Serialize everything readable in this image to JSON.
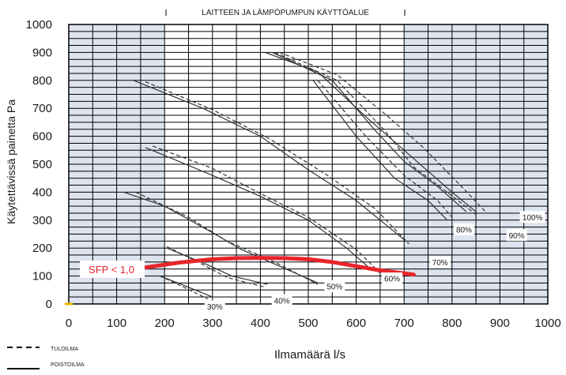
{
  "chart_data": {
    "type": "line",
    "title": "LAITTEEN JA LÄMPÖPUMPUN KÄYTTÖALUE",
    "xlabel": "Ilmamäärä l/s",
    "ylabel": "Käytettävissä painetta Pa",
    "xlim": [
      0,
      1000
    ],
    "ylim": [
      0,
      1000
    ],
    "x_ticks": [
      "0",
      "100",
      "200",
      "300",
      "400",
      "500",
      "600",
      "700",
      "800",
      "900",
      "1000"
    ],
    "y_ticks": [
      "0",
      "100",
      "200",
      "300",
      "400",
      "500",
      "600",
      "700",
      "800",
      "900",
      "1000"
    ],
    "grid": true,
    "shaded_x_ranges": [
      [
        0,
        200
      ],
      [
        700,
        1000
      ]
    ],
    "legend": {
      "position": "bottom-left",
      "items": [
        {
          "label": "TULOILMA",
          "style": "dashed"
        },
        {
          "label": "POISTOILMA",
          "style": "solid"
        }
      ]
    },
    "series": [
      {
        "label": "30%",
        "style": "solid",
        "x": [
          190,
          235,
          300
        ],
        "y": [
          100,
          70,
          25
        ]
      },
      {
        "label": "30%",
        "style": "dashed",
        "x": [
          190,
          240,
          290
        ],
        "y": [
          100,
          60,
          18
        ]
      },
      {
        "label": "40%",
        "style": "solid",
        "x": [
          205,
          290,
          340,
          415
        ],
        "y": [
          200,
          140,
          100,
          70
        ]
      },
      {
        "label": "40%",
        "style": "dashed",
        "x": [
          205,
          270,
          330,
          410
        ],
        "y": [
          205,
          150,
          95,
          60
        ]
      },
      {
        "label": "50%",
        "style": "solid",
        "x": [
          115,
          200,
          300,
          360,
          440,
          520
        ],
        "y": [
          400,
          350,
          255,
          195,
          135,
          75
        ]
      },
      {
        "label": "50%",
        "style": "dashed",
        "x": [
          140,
          250,
          330,
          430,
          520
        ],
        "y": [
          400,
          310,
          225,
          150,
          70
        ]
      },
      {
        "label": "60%",
        "style": "solid",
        "x": [
          160,
          300,
          400,
          500,
          580,
          630
        ],
        "y": [
          560,
          460,
          385,
          300,
          200,
          125
        ]
      },
      {
        "label": "60%",
        "style": "dashed",
        "x": [
          175,
          300,
          400,
          500,
          600,
          650
        ],
        "y": [
          565,
          485,
          395,
          310,
          195,
          110
        ]
      },
      {
        "label": "70%",
        "style": "solid",
        "x": [
          135,
          280,
          400,
          500,
          600,
          700
        ],
        "y": [
          800,
          700,
          600,
          480,
          370,
          230
        ]
      },
      {
        "label": "70%",
        "style": "dashed",
        "x": [
          160,
          300,
          420,
          540,
          640,
          710
        ],
        "y": [
          795,
          695,
          590,
          460,
          340,
          215
        ]
      },
      {
        "label": "80%",
        "style": "solid",
        "x": [
          510,
          600,
          680,
          750,
          790
        ],
        "y": [
          800,
          600,
          450,
          370,
          300
        ]
      },
      {
        "label": "80%",
        "style": "dashed",
        "x": [
          520,
          620,
          700,
          770,
          800
        ],
        "y": [
          800,
          600,
          460,
          370,
          310
        ]
      },
      {
        "label": "90%",
        "style": "solid",
        "x": [
          425,
          550,
          640,
          700,
          770,
          830
        ],
        "y": [
          900,
          800,
          620,
          510,
          420,
          330
        ]
      },
      {
        "label": "90%",
        "style": "dashed",
        "x": [
          430,
          560,
          660,
          720,
          790,
          850
        ],
        "y": [
          900,
          800,
          620,
          490,
          400,
          320
        ]
      },
      {
        "label": "100%",
        "style": "solid",
        "x": [
          410,
          520,
          620,
          720,
          800,
          850
        ],
        "y": [
          900,
          830,
          670,
          520,
          400,
          330
        ]
      },
      {
        "label": "100%",
        "style": "dashed",
        "x": [
          440,
          560,
          660,
          740,
          820,
          870
        ],
        "y": [
          900,
          820,
          680,
          560,
          420,
          330
        ]
      }
    ],
    "sfp_curve": {
      "label": "SFP < 1,0",
      "color": "#e8242b",
      "x": [
        150,
        230,
        300,
        350,
        400,
        450,
        500,
        550,
        600,
        650,
        720
      ],
      "y": [
        128,
        148,
        160,
        164,
        165,
        164,
        160,
        150,
        135,
        120,
        105
      ]
    },
    "annotations": [
      {
        "text": "30%",
        "x": 305,
        "y": -10
      },
      {
        "text": "40%",
        "x": 445,
        "y": 12
      },
      {
        "text": "50%",
        "x": 555,
        "y": 62
      },
      {
        "text": "60%",
        "x": 675,
        "y": 90
      },
      {
        "text": "70%",
        "x": 775,
        "y": 148
      },
      {
        "text": "80%",
        "x": 825,
        "y": 265
      },
      {
        "text": "90%",
        "x": 935,
        "y": 245
      },
      {
        "text": "100%",
        "x": 968,
        "y": 310
      }
    ]
  }
}
